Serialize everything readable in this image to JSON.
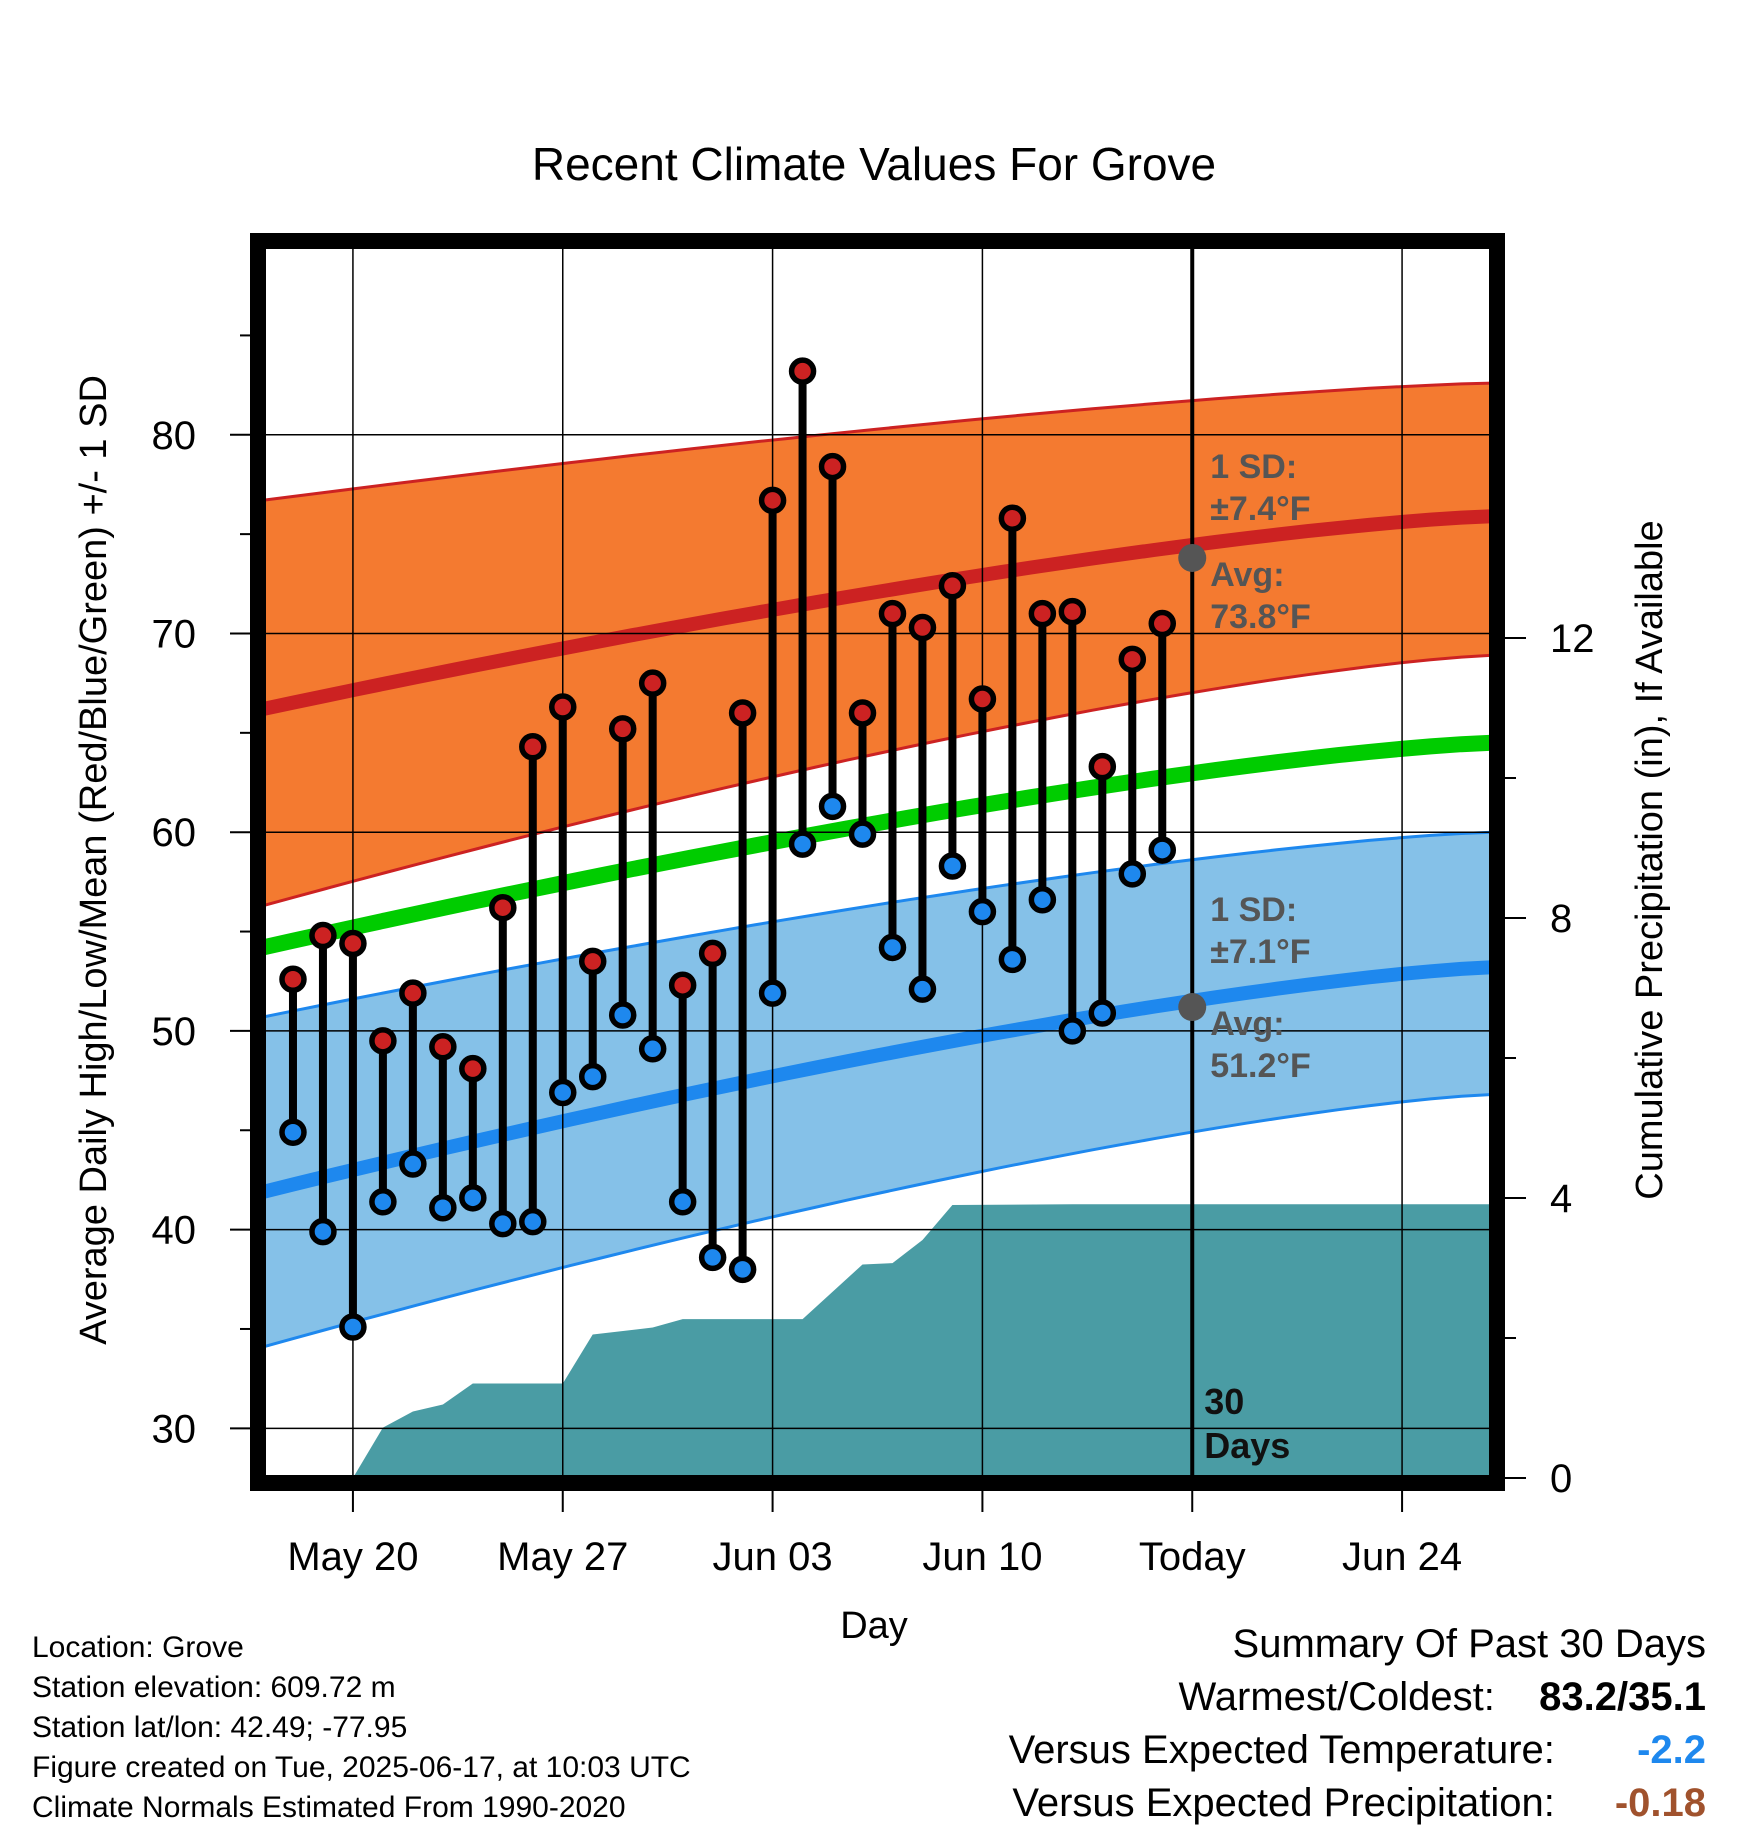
{
  "chart_data": {
    "type": "line",
    "title": "Recent Climate Values For Grove",
    "xlabel": "Day",
    "ylabel": "Average Daily High/Low/Mean (Red/Blue/Green) +/- 1 SD",
    "y2label": "Cumulative Precipitation (in), If Available",
    "ylim": [
      27.5,
      89.5
    ],
    "y2lim": [
      0,
      17.6
    ],
    "yticks": [
      30,
      40,
      50,
      60,
      70,
      80
    ],
    "y2ticks": [
      0,
      4,
      8,
      12
    ],
    "xlim": [
      "2025-05-17",
      "2025-06-27"
    ],
    "xticks": [
      {
        "date": "2025-05-20",
        "label": "May 20"
      },
      {
        "date": "2025-05-27",
        "label": "May 27"
      },
      {
        "date": "2025-06-03",
        "label": "Jun 03"
      },
      {
        "date": "2025-06-10",
        "label": "Jun 10"
      },
      {
        "date": "2025-06-17",
        "label": "Today"
      },
      {
        "date": "2025-06-24",
        "label": "Jun 24"
      }
    ],
    "today": "2025-06-17",
    "normal_dates": [
      "2025-05-17",
      "2025-06-27"
    ],
    "normal_high": [
      66.2,
      75.9
    ],
    "normal_high_upper": [
      76.7,
      82.6
    ],
    "normal_high_lower": [
      56.3,
      68.9
    ],
    "normal_mean": [
      54.2,
      64.5
    ],
    "normal_low": [
      41.9,
      53.2
    ],
    "normal_low_upper": [
      50.7,
      60.0
    ],
    "normal_low_lower": [
      34.1,
      46.8
    ],
    "colors": {
      "high": "#cc2222",
      "high_band": "#f47a30",
      "mean": "#00cc00",
      "low": "#1e88ee",
      "low_band": "#85c1e8",
      "precip": "#4a9ca4",
      "high_dot": "#cc2222",
      "low_dot": "#1e88ee",
      "avg_marker": "#555555"
    },
    "series": [
      {
        "name": "High",
        "dates": [
          "2025-05-18",
          "2025-05-19",
          "2025-05-20",
          "2025-05-21",
          "2025-05-22",
          "2025-05-23",
          "2025-05-24",
          "2025-05-25",
          "2025-05-26",
          "2025-05-27",
          "2025-05-28",
          "2025-05-29",
          "2025-05-30",
          "2025-05-31",
          "2025-06-01",
          "2025-06-02",
          "2025-06-03",
          "2025-06-04",
          "2025-06-05",
          "2025-06-06",
          "2025-06-07",
          "2025-06-08",
          "2025-06-09",
          "2025-06-10",
          "2025-06-11",
          "2025-06-12",
          "2025-06-13",
          "2025-06-14",
          "2025-06-15",
          "2025-06-16"
        ],
        "values": [
          52.6,
          54.8,
          54.4,
          49.5,
          51.9,
          49.2,
          48.1,
          56.2,
          64.3,
          66.3,
          53.5,
          65.2,
          67.5,
          52.3,
          53.9,
          66.0,
          76.7,
          83.2,
          78.4,
          66.0,
          71.0,
          70.3,
          72.4,
          66.7,
          75.8,
          71.0,
          71.1,
          63.3,
          68.7,
          70.5
        ]
      },
      {
        "name": "Low",
        "dates": [
          "2025-05-18",
          "2025-05-19",
          "2025-05-20",
          "2025-05-21",
          "2025-05-22",
          "2025-05-23",
          "2025-05-24",
          "2025-05-25",
          "2025-05-26",
          "2025-05-27",
          "2025-05-28",
          "2025-05-29",
          "2025-05-30",
          "2025-05-31",
          "2025-06-01",
          "2025-06-02",
          "2025-06-03",
          "2025-06-04",
          "2025-06-05",
          "2025-06-06",
          "2025-06-07",
          "2025-06-08",
          "2025-06-09",
          "2025-06-10",
          "2025-06-11",
          "2025-06-12",
          "2025-06-13",
          "2025-06-14",
          "2025-06-15",
          "2025-06-16"
        ],
        "values": [
          44.9,
          39.9,
          35.1,
          41.4,
          43.3,
          41.1,
          41.6,
          40.3,
          40.4,
          46.9,
          47.7,
          50.8,
          49.1,
          41.4,
          38.6,
          38.0,
          51.9,
          59.4,
          61.3,
          59.9,
          54.2,
          52.1,
          58.3,
          56.0,
          53.6,
          56.6,
          50.0,
          50.9,
          57.9,
          59.1
        ]
      },
      {
        "name": "Cumulative Precipitation",
        "dates": [
          "2025-05-20",
          "2025-05-21",
          "2025-05-22",
          "2025-05-23",
          "2025-05-24",
          "2025-05-27",
          "2025-05-28",
          "2025-05-30",
          "2025-05-31",
          "2025-06-04",
          "2025-06-06",
          "2025-06-07",
          "2025-06-08",
          "2025-06-09",
          "2025-06-13",
          "2025-06-27"
        ],
        "values": [
          0.0,
          0.72,
          0.95,
          1.05,
          1.35,
          1.35,
          2.05,
          2.15,
          2.27,
          2.27,
          3.05,
          3.07,
          3.4,
          3.9,
          3.91,
          3.91
        ]
      }
    ],
    "annotations": {
      "high_sd": "1 SD:",
      "high_sd_value": "±7.4°F",
      "high_avg": "Avg:",
      "high_avg_value": "73.8°F",
      "high_avg_num": 73.8,
      "low_sd": "1 SD:",
      "low_sd_value": "±7.1°F",
      "low_avg": "Avg:",
      "low_avg_value": "51.2°F",
      "low_avg_num": 51.2,
      "days_line1": "30",
      "days_line2": "Days"
    }
  },
  "info": {
    "location": "Location: Grove",
    "elevation": "Station elevation: 609.72 m",
    "latlon": "Station lat/lon: 42.49; -77.95",
    "created": "Figure created on Tue, 2025-06-17, at 10:03 UTC",
    "normals": "Climate Normals Estimated From 1990-2020"
  },
  "summary": {
    "title": "Summary Of Past 30 Days",
    "warmest_coldest_label": "Warmest/Coldest:",
    "warmest_coldest_value": "83.2/35.1",
    "temp_label": "Versus Expected Temperature:",
    "temp_value": "-2.2",
    "temp_color": "#1e88ee",
    "precip_label": "Versus Expected Precipitation:",
    "precip_value": "-0.18",
    "precip_color": "#a0522d"
  }
}
